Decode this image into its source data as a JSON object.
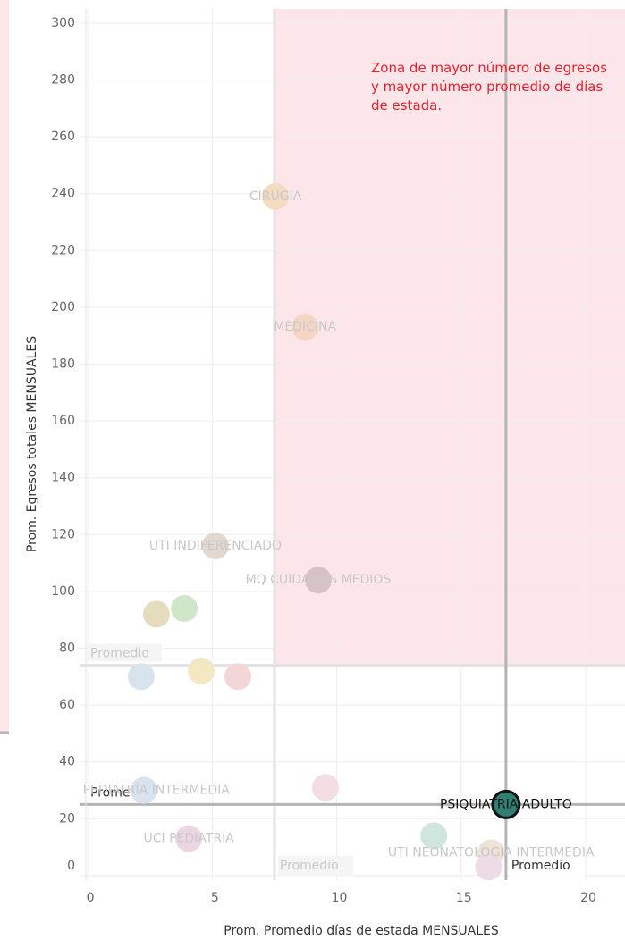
{
  "chart_data": {
    "type": "scatter",
    "annotation": "Zona de mayor número de egresos y mayor número promedio de días de estada.",
    "x_label": "Prom. Promedio días de estada MENSUALES",
    "y_label": "Prom. Egresos totales MENSUALES",
    "x": [
      7.54,
      8.73,
      5.13,
      9.26,
      2.76,
      3.88,
      2.15,
      4.56,
      6.03,
      2.26,
      9.55,
      16.8,
      4.06,
      13.9,
      16.2,
      16.1
    ],
    "values": [
      239,
      193,
      116,
      104,
      92,
      94,
      70,
      72,
      70,
      30,
      31,
      25,
      13,
      14,
      8,
      3
    ],
    "labels": [
      "CIRUGÍA",
      "MEDICINA",
      "UTI INDIFERENCIADO",
      "MQ CUIDADOS MEDIOS",
      null,
      null,
      null,
      null,
      null,
      "UTI PEDIATRÍA INTERMEDIA",
      null,
      "PSIQUIATRIA ADULTO",
      "UCI PEDIATRÍA",
      null,
      "UTI NEONATOLOGIA INTERMEDIA",
      null
    ],
    "colors": [
      "#f3dcc2",
      "#f5d6c6",
      "#e2d8d0",
      "#d9c2c6",
      "#e4dcbc",
      "#cfe6c8",
      "#d9e3ee",
      "#f3e8c2",
      "#f2d6d8",
      "#d9e3ee",
      "#f2dde3",
      "#2f7f73",
      "#ecd6e2",
      "#cfe6de",
      "#efe2d6",
      "#eddce6"
    ],
    "selected": 11,
    "zone_color": "#fde6ea",
    "reference_lines": [
      {
        "x": 7.5,
        "y": 74,
        "label": "Promedio",
        "color": "#e3e3e3"
      },
      {
        "x": 16.8,
        "y": 25,
        "label": "Promedio",
        "color": "#b4b4b4"
      }
    ],
    "xlim": [
      -0.29,
      21.58
    ],
    "ylim": [
      -1.6,
      305
    ],
    "xticks": [
      0,
      5,
      10,
      15,
      20
    ],
    "yticks": [
      0,
      20,
      40,
      60,
      80,
      100,
      120,
      140,
      160,
      180,
      200,
      220,
      240,
      260,
      280,
      300
    ],
    "grid": true
  }
}
